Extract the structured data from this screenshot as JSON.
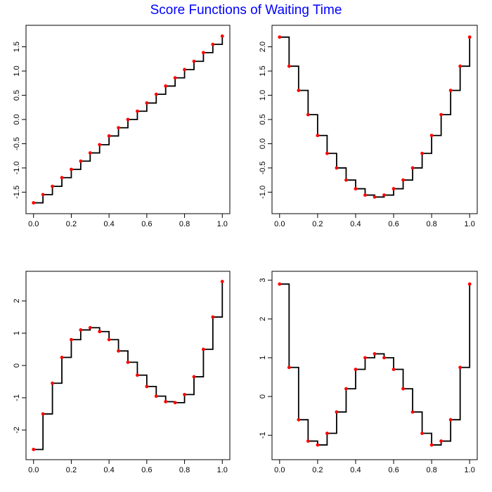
{
  "title": "Score Functions of Waiting Time",
  "colors": {
    "title": "#0000ff",
    "step_line": "#000000",
    "points": "#ff0000",
    "axes": "#000000"
  },
  "chart_data": [
    {
      "type": "line",
      "title": "",
      "xlabel": "",
      "ylabel": "",
      "xlim": [
        0,
        1
      ],
      "ylim": [
        -1.8,
        1.8
      ],
      "xticks": [
        "0.0",
        "0.2",
        "0.4",
        "0.6",
        "0.8",
        "1.0"
      ],
      "yticks": [
        "-1.5",
        "-1.0",
        "-0.5",
        "0.0",
        "0.5",
        "1.0",
        "1.5"
      ],
      "x": [
        0.0,
        0.05,
        0.1,
        0.15,
        0.2,
        0.25,
        0.3,
        0.35,
        0.4,
        0.45,
        0.5,
        0.55,
        0.6,
        0.65,
        0.7,
        0.75,
        0.8,
        0.85,
        0.9,
        0.95,
        1.0
      ],
      "y": [
        -1.72,
        -1.55,
        -1.38,
        -1.2,
        -1.03,
        -0.86,
        -0.69,
        -0.52,
        -0.34,
        -0.17,
        0.0,
        0.17,
        0.34,
        0.52,
        0.69,
        0.86,
        1.03,
        1.2,
        1.38,
        1.55,
        1.72
      ]
    },
    {
      "type": "line",
      "title": "",
      "xlabel": "",
      "ylabel": "",
      "xlim": [
        0,
        1
      ],
      "ylim": [
        -1.3,
        2.3
      ],
      "xticks": [
        "0.0",
        "0.2",
        "0.4",
        "0.6",
        "0.8",
        "1.0"
      ],
      "yticks": [
        "-1.0",
        "-0.5",
        "0.0",
        "0.5",
        "1.0",
        "1.5",
        "2.0"
      ],
      "x": [
        0.0,
        0.05,
        0.1,
        0.15,
        0.2,
        0.25,
        0.3,
        0.35,
        0.4,
        0.45,
        0.5,
        0.55,
        0.6,
        0.65,
        0.7,
        0.75,
        0.8,
        0.85,
        0.9,
        0.95,
        1.0
      ],
      "y": [
        2.2,
        1.6,
        1.1,
        0.6,
        0.17,
        -0.2,
        -0.5,
        -0.75,
        -0.93,
        -1.06,
        -1.1,
        -1.06,
        -0.93,
        -0.75,
        -0.5,
        -0.2,
        0.17,
        0.6,
        1.1,
        1.6,
        2.2
      ]
    },
    {
      "type": "line",
      "title": "",
      "xlabel": "",
      "ylabel": "",
      "xlim": [
        0,
        1
      ],
      "ylim": [
        -2.7,
        2.7
      ],
      "xticks": [
        "0.0",
        "0.2",
        "0.4",
        "0.6",
        "0.8",
        "1.0"
      ],
      "yticks": [
        "-2",
        "-1",
        "0",
        "1",
        "2"
      ],
      "x": [
        0.0,
        0.05,
        0.1,
        0.15,
        0.2,
        0.25,
        0.3,
        0.35,
        0.4,
        0.45,
        0.5,
        0.55,
        0.6,
        0.65,
        0.7,
        0.75,
        0.8,
        0.85,
        0.9,
        0.95,
        1.0
      ],
      "y": [
        -2.6,
        -1.5,
        -0.55,
        0.25,
        0.8,
        1.1,
        1.17,
        1.05,
        0.8,
        0.45,
        0.1,
        -0.3,
        -0.65,
        -0.95,
        -1.12,
        -1.15,
        -0.9,
        -0.35,
        0.5,
        1.5,
        2.6
      ]
    },
    {
      "type": "line",
      "title": "",
      "xlabel": "",
      "ylabel": "",
      "xlim": [
        0,
        1
      ],
      "ylim": [
        -1.45,
        3.05
      ],
      "xticks": [
        "0.0",
        "0.2",
        "0.4",
        "0.6",
        "0.8",
        "1.0"
      ],
      "yticks": [
        "-1",
        "0",
        "1",
        "2",
        "3"
      ],
      "x": [
        0.0,
        0.05,
        0.1,
        0.15,
        0.2,
        0.25,
        0.3,
        0.35,
        0.4,
        0.45,
        0.5,
        0.55,
        0.6,
        0.65,
        0.7,
        0.75,
        0.8,
        0.85,
        0.9,
        0.95,
        1.0
      ],
      "y": [
        2.9,
        0.75,
        -0.6,
        -1.15,
        -1.25,
        -0.95,
        -0.4,
        0.2,
        0.7,
        1.0,
        1.1,
        1.0,
        0.7,
        0.2,
        -0.4,
        -0.95,
        -1.25,
        -1.15,
        -0.6,
        0.75,
        2.9
      ]
    }
  ]
}
